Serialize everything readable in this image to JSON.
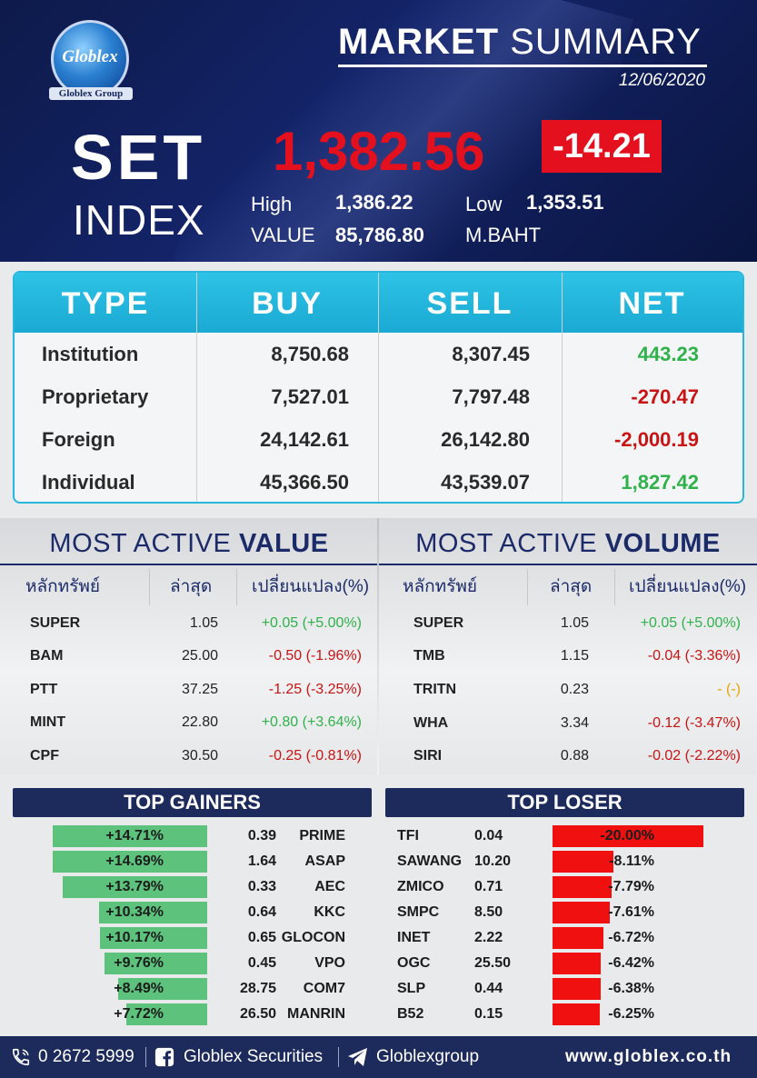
{
  "header": {
    "logo_text": "Globlex",
    "logo_sub": "Globlex Group",
    "title_bold": "MARKET",
    "title_light": "SUMMARY",
    "date": "12/06/2020",
    "set_label": "SET",
    "index_label": "INDEX",
    "index_value": "1,382.56",
    "change": "-14.21",
    "high_label": "High",
    "high_value": "1,386.22",
    "low_label": "Low",
    "low_value": "1,353.51",
    "value_label": "VALUE",
    "value_amount": "85,786.80",
    "value_unit": "M.BAHT"
  },
  "type_table": {
    "headers": [
      "TYPE",
      "BUY",
      "SELL",
      "NET"
    ],
    "rows": [
      {
        "type": "Institution",
        "buy": "8,750.68",
        "sell": "8,307.45",
        "net": "443.23",
        "dir": "pos"
      },
      {
        "type": "Proprietary",
        "buy": "7,527.01",
        "sell": "7,797.48",
        "net": "-270.47",
        "dir": "neg"
      },
      {
        "type": "Foreign",
        "buy": "24,142.61",
        "sell": "26,142.80",
        "net": "-2,000.19",
        "dir": "neg"
      },
      {
        "type": "Individual",
        "buy": "45,366.50",
        "sell": "43,539.07",
        "net": "1,827.42",
        "dir": "pos"
      }
    ]
  },
  "most_active_value": {
    "title_light": "MOST ACTIVE",
    "title_bold": "VALUE",
    "headers": [
      "หลักทรัพย์",
      "ล่าสุด",
      "เปลี่ยนแปลง(%)"
    ],
    "rows": [
      {
        "symbol": "SUPER",
        "last": "1.05",
        "change": "+0.05 (+5.00%)",
        "dir": "pos"
      },
      {
        "symbol": "BAM",
        "last": "25.00",
        "change": "-0.50 (-1.96%)",
        "dir": "neg"
      },
      {
        "symbol": "PTT",
        "last": "37.25",
        "change": "-1.25 (-3.25%)",
        "dir": "neg"
      },
      {
        "symbol": "MINT",
        "last": "22.80",
        "change": "+0.80 (+3.64%)",
        "dir": "pos"
      },
      {
        "symbol": "CPF",
        "last": "30.50",
        "change": "-0.25 (-0.81%)",
        "dir": "neg"
      }
    ]
  },
  "most_active_volume": {
    "title_light": "MOST ACTIVE",
    "title_bold": "VOLUME",
    "headers": [
      "หลักทรัพย์",
      "ล่าสุด",
      "เปลี่ยนแปลง(%)"
    ],
    "rows": [
      {
        "symbol": "SUPER",
        "last": "1.05",
        "change": "+0.05 (+5.00%)",
        "dir": "pos"
      },
      {
        "symbol": "TMB",
        "last": "1.15",
        "change": "-0.04 (-3.36%)",
        "dir": "neg"
      },
      {
        "symbol": "TRITN",
        "last": "0.23",
        "change": "- (-)",
        "dir": "yel"
      },
      {
        "symbol": "WHA",
        "last": "3.34",
        "change": "-0.12 (-3.47%)",
        "dir": "neg"
      },
      {
        "symbol": "SIRI",
        "last": "0.88",
        "change": "-0.02 (-2.22%)",
        "dir": "neg"
      }
    ]
  },
  "top_gainers": {
    "title": "TOP GAINERS",
    "rows": [
      {
        "pct": "+14.71%",
        "pct_value": 14.71,
        "price": "0.39",
        "symbol": "PRIME"
      },
      {
        "pct": "+14.69%",
        "pct_value": 14.69,
        "price": "1.64",
        "symbol": "ASAP"
      },
      {
        "pct": "+13.79%",
        "pct_value": 13.79,
        "price": "0.33",
        "symbol": "AEC"
      },
      {
        "pct": "+10.34%",
        "pct_value": 10.34,
        "price": "0.64",
        "symbol": "KKC"
      },
      {
        "pct": "+10.17%",
        "pct_value": 10.17,
        "price": "0.65",
        "symbol": "GLOCON"
      },
      {
        "pct": "+9.76%",
        "pct_value": 9.76,
        "price": "0.45",
        "symbol": "VPO"
      },
      {
        "pct": "+8.49%",
        "pct_value": 8.49,
        "price": "28.75",
        "symbol": "COM7"
      },
      {
        "pct": "+7.72%",
        "pct_value": 7.72,
        "price": "26.50",
        "symbol": "MANRIN"
      }
    ]
  },
  "top_loser": {
    "title": "TOP LOSER",
    "rows": [
      {
        "symbol": "TFI",
        "price": "0.04",
        "pct": "-20.00%",
        "pct_value": 20.0
      },
      {
        "symbol": "SAWANG",
        "price": "10.20",
        "pct": "-8.11%",
        "pct_value": 8.11
      },
      {
        "symbol": "ZMICO",
        "price": "0.71",
        "pct": "-7.79%",
        "pct_value": 7.79
      },
      {
        "symbol": "SMPC",
        "price": "8.50",
        "pct": "-7.61%",
        "pct_value": 7.61
      },
      {
        "symbol": "INET",
        "price": "2.22",
        "pct": "-6.72%",
        "pct_value": 6.72
      },
      {
        "symbol": "OGC",
        "price": "25.50",
        "pct": "-6.42%",
        "pct_value": 6.42
      },
      {
        "symbol": "SLP",
        "price": "0.44",
        "pct": "-6.38%",
        "pct_value": 6.38
      },
      {
        "symbol": "B52",
        "price": "0.15",
        "pct": "-6.25%",
        "pct_value": 6.25
      }
    ]
  },
  "footer": {
    "phone": "0 2672 5999",
    "facebook": "Globlex Securities",
    "telegram": "Globlexgroup",
    "website": "www.globlex.co.th"
  },
  "colors": {
    "navy": "#1d2a5c",
    "cyan": "#2ec3e6",
    "red": "#e4101e",
    "green": "#5cc27c",
    "pos_text": "#2fb24a",
    "neg_text": "#c81414"
  },
  "icons": [
    "phone-icon",
    "facebook-icon",
    "telegram-icon"
  ]
}
